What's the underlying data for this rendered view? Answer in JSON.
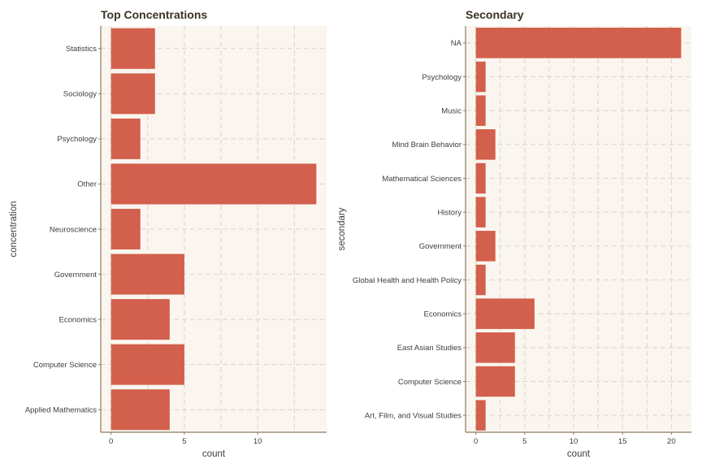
{
  "colors": {
    "bar": "#d2604c",
    "panel": "#faf6ef",
    "axis": "#8a7a62",
    "grid": "#d9d4cc",
    "title": "#3b3326"
  },
  "chart_data": [
    {
      "type": "bar",
      "orientation": "horizontal",
      "title": "Top Concentrations",
      "xlabel": "count",
      "ylabel": "concentration",
      "categories": [
        "Statistics",
        "Sociology",
        "Psychology",
        "Other",
        "Neuroscience",
        "Government",
        "Economics",
        "Computer Science",
        "Applied Mathematics"
      ],
      "values": [
        3,
        3,
        2,
        14,
        2,
        5,
        4,
        5,
        4
      ],
      "xlim": [
        -0.7,
        14.7
      ],
      "xticks": [
        0,
        5,
        10
      ],
      "grid": true
    },
    {
      "type": "bar",
      "orientation": "horizontal",
      "title": "Secondary",
      "xlabel": "count",
      "ylabel": "secondary",
      "categories": [
        "NA",
        "Psychology",
        "Music",
        "Mind Brain Behavior",
        "Mathematical Sciences",
        "History",
        "Government",
        "Global Health and Health Policy",
        "Economics",
        "East Asian Studies",
        "Computer Science",
        "Art, Film, and Visual Studies"
      ],
      "values": [
        21,
        1,
        1,
        2,
        1,
        1,
        2,
        1,
        6,
        4,
        4,
        1
      ],
      "xlim": [
        -1.05,
        22.05
      ],
      "xticks": [
        0,
        5,
        10,
        15,
        20
      ],
      "grid": true
    }
  ]
}
